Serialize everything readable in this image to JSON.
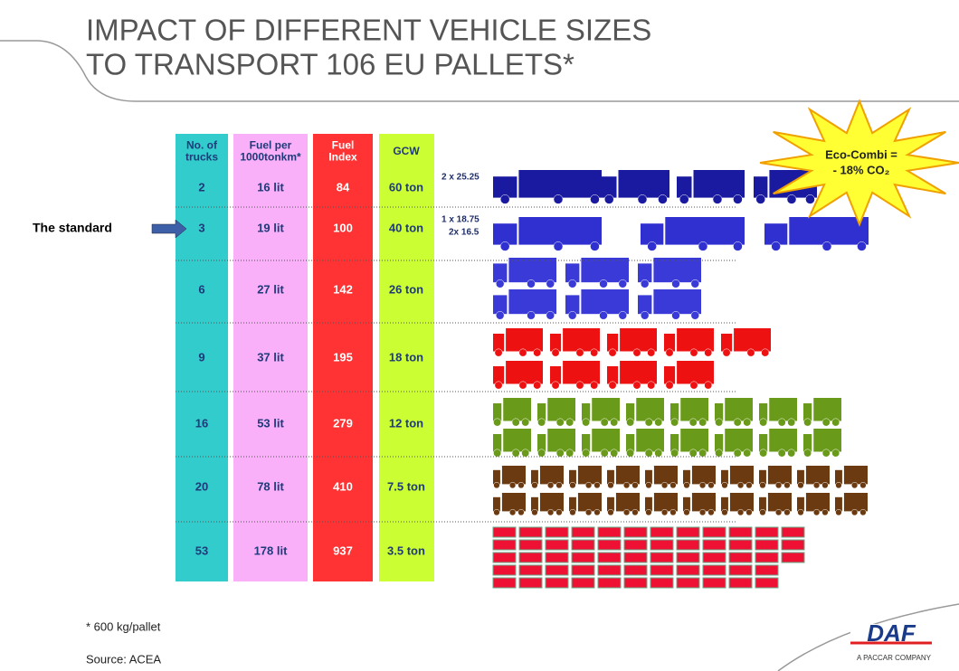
{
  "header": {
    "title_lines": [
      "IMPACT OF DIFFERENT VEHICLE SIZES",
      "TO TRANSPORT 106 EU PALLETS*"
    ]
  },
  "table": {
    "header": [
      [
        "No. of",
        "trucks"
      ],
      [
        "Fuel per",
        "1000tonkm*"
      ],
      [
        "Fuel",
        "Index"
      ],
      [
        "GCW"
      ]
    ],
    "rows": [
      [
        "2",
        "16 lit",
        "84",
        "60 ton"
      ],
      [
        "3",
        "19 lit",
        "100",
        "40 ton"
      ],
      [
        "6",
        "27 lit",
        "142",
        "26 ton"
      ],
      [
        "9",
        "37 lit",
        "195",
        "18 ton"
      ],
      [
        "16",
        "53 lit",
        "279",
        "12 ton"
      ],
      [
        "20",
        "78 lit",
        "410",
        "7.5 ton"
      ],
      [
        "53",
        "178 lit",
        "937",
        "3.5 ton"
      ]
    ]
  },
  "standard_label": "The standard",
  "combo_labels": [
    "2 x 25.25",
    "1 x 18.75",
    "2x 16.5"
  ],
  "callout": [
    "Eco-Combi =",
    "- 18% CO₂"
  ],
  "footnote": "* 600 kg/pallet",
  "source": "Source: ACEA",
  "logo": {
    "name": "DAF",
    "tagline": "A PACCAR COMPANY"
  }
}
